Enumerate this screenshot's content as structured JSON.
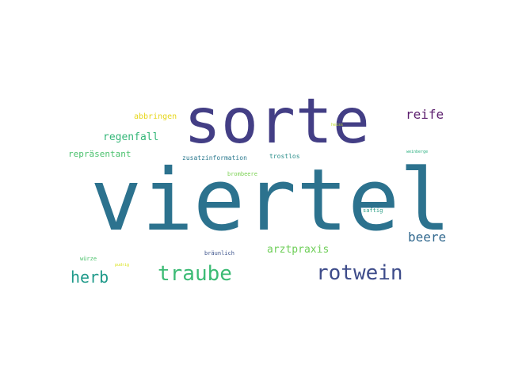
{
  "words": [
    {
      "text": "viertel",
      "color": "#2c728e"
    },
    {
      "text": "sorte",
      "color": "#433e85"
    },
    {
      "text": "rotwein",
      "color": "#3e4c8a"
    },
    {
      "text": "traube",
      "color": "#3cbb75"
    },
    {
      "text": "herb",
      "color": "#1f9a8a"
    },
    {
      "text": "beere",
      "color": "#31688e"
    },
    {
      "text": "reife",
      "color": "#5b1d6d"
    },
    {
      "text": "arztpraxis",
      "color": "#6ece58"
    },
    {
      "text": "regenfall",
      "color": "#35b779"
    },
    {
      "text": "repräsentant",
      "color": "#4ac16d"
    },
    {
      "text": "abbringen",
      "color": "#e6d61a"
    },
    {
      "text": "zusatzinformation",
      "color": "#2a788e"
    },
    {
      "text": "trostlos",
      "color": "#2c8f8b"
    },
    {
      "text": "brombeere",
      "color": "#7ad151"
    },
    {
      "text": "saftig",
      "color": "#2a9e86"
    },
    {
      "text": "bräunlich",
      "color": "#3b528b"
    },
    {
      "text": "würze",
      "color": "#4cc26c"
    },
    {
      "text": "pudrig",
      "color": "#d8e219"
    },
    {
      "text": "heiss",
      "color": "#bddf26"
    },
    {
      "text": "weinberge",
      "color": "#29af7f"
    }
  ]
}
